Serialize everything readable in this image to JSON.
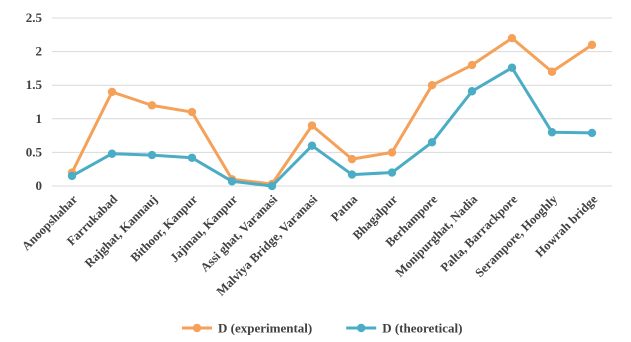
{
  "chart_data": {
    "type": "line",
    "title": "",
    "xlabel": "",
    "ylabel": "",
    "ylim": [
      0,
      2.5
    ],
    "yticks": [
      "0",
      "0.5",
      "1",
      "1.5",
      "2",
      "2.5"
    ],
    "grid": true,
    "legend_position": "bottom",
    "categories": [
      "Anoopshahar",
      "Farrukabad",
      "Rajghat, Kannauj",
      "Bithoor, Kanpur",
      "Jajmau, Kanpur",
      "Assi ghat, Varanasi",
      "Malviya Bridge, Varanasi",
      "Patna",
      "Bhagalpur",
      "Berhampore",
      "Monipurghat, Nadia",
      "Palta, Barrackpore",
      "Serampore, Hooghly",
      "Howrah bridge"
    ],
    "series": [
      {
        "name": "D (experimental)",
        "color": "#F5A15A",
        "values": [
          0.2,
          1.4,
          1.2,
          1.1,
          0.1,
          0.03,
          0.9,
          0.4,
          0.5,
          1.5,
          1.8,
          2.2,
          1.7,
          2.1
        ]
      },
      {
        "name": "D (theoretical)",
        "color": "#4BACC6",
        "values": [
          0.15,
          0.48,
          0.46,
          0.42,
          0.07,
          0.0,
          0.6,
          0.17,
          0.2,
          0.65,
          1.41,
          1.76,
          0.8,
          0.79
        ]
      }
    ]
  }
}
